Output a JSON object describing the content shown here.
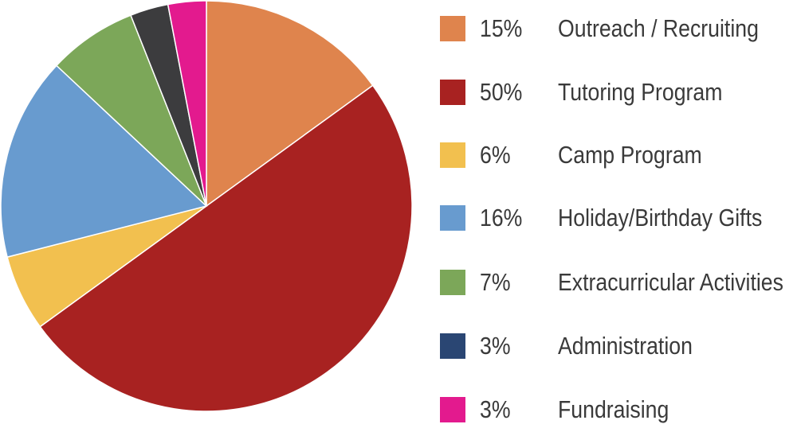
{
  "chart_data": {
    "type": "pie",
    "title": "",
    "legend_position": "right",
    "slices": [
      {
        "label": "Outreach / Recruiting",
        "percent_label": "15%",
        "value": 15,
        "color": "#df844d"
      },
      {
        "label": "Tutoring Program",
        "percent_label": "50%",
        "value": 50,
        "color": "#a82221"
      },
      {
        "label": "Camp Program",
        "percent_label": "6%",
        "value": 6,
        "color": "#f2c04f"
      },
      {
        "label": "Holiday/Birthday Gifts",
        "percent_label": "16%",
        "value": 16,
        "color": "#689bcf"
      },
      {
        "label": "Extracurricular Activities",
        "percent_label": "7%",
        "value": 7,
        "color": "#7ca759"
      },
      {
        "label": "Administration",
        "percent_label": "3%",
        "value": 3,
        "color": "#2a4673"
      },
      {
        "label": "Fundraising",
        "percent_label": "3%",
        "value": 3,
        "color": "#e31a8e"
      }
    ],
    "pie_draw_colors": [
      "#df844d",
      "#a82221",
      "#f2c04f",
      "#689bcf",
      "#7ca759",
      "#3c3c3e",
      "#e31a8e"
    ]
  }
}
